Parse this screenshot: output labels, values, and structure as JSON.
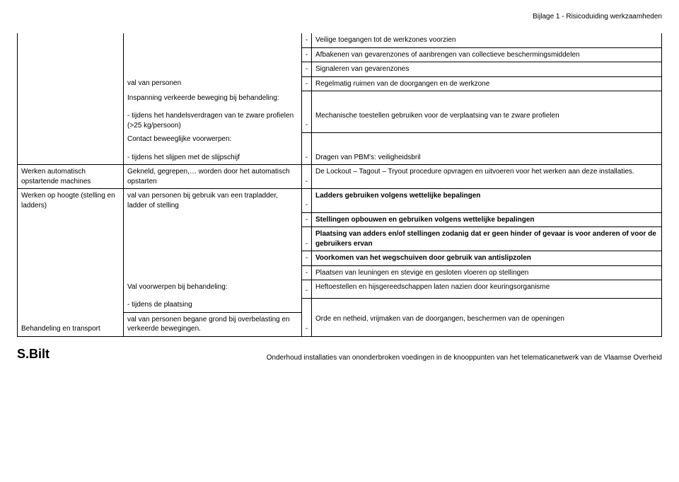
{
  "header_right": "Bijlage 1 - Risicoduiding werkzaamheden",
  "dash": "-",
  "rows": {
    "r1_c4": "Veilige toegangen tot de werkzones voorzien",
    "r2_c4": "Afbakenen van gevarenzones of aanbrengen van collectieve beschermingsmiddelen",
    "r3_c4": "Signaleren van gevarenzones",
    "r4_c2": "val van personen",
    "r4_c4": "Regelmatig ruimen van de doorgangen en de werkzone",
    "r5_c2": "Inspanning verkeerde beweging bij behandeling:",
    "r6_c2": "- tijdens het handelsverdragen van te zware profielen (>25 kg/persoon)",
    "r6_c4": "Mechanische toestellen gebruiken voor de verplaatsing van te zware profielen",
    "r7_c2": "Contact beweeglijke voorwerpen:",
    "r8_c2": "- tijdens het slijpen met de slijpschijf",
    "r8_c4": "Dragen van PBM's: veiligheidsbril",
    "r9_c1": "Werken automatisch opstartende machines",
    "r9_c2": "Gekneld, gegrepen,… worden door het automatisch opstarten",
    "r9_c4": "De Lockout – Tagout – Tryout procedure opvragen en uitvoeren voor het werken aan deze installaties.",
    "r10_c1": "Werken op hoogte (stelling en ladders)",
    "r10_c2": "val van personen bij gebruik van een trapladder, ladder of stelling",
    "r10_c4": "Ladders gebruiken volgens wettelijke bepalingen",
    "r11_c4": "Stellingen opbouwen en gebruiken volgens wettelijke bepalingen",
    "r12_c4": "Plaatsing van adders en/of stellingen zodanig dat er geen hinder of gevaar is voor anderen of voor de gebruikers ervan",
    "r13_c4": "Voorkomen van het wegschuiven door gebruik van antislipzolen",
    "r14_c4": "Plaatsen van leuningen en stevige en gesloten vloeren op stellingen",
    "r15_c2": "Val voorwerpen bij behandeling:",
    "r15_c4": "Heftoestellen en hijsgereedschappen laten nazien door keuringsorganisme",
    "r16_c2": "- tijdens de plaatsing",
    "r17_c1": "Behandeling en transport",
    "r17_c2": "val van personen begane grond bij overbelasting en verkeerde bewegingen.",
    "r17_c4": "Orde en netheid, vrijmaken van de doorgangen, beschermen van de openingen"
  },
  "logo": "S.Bilt",
  "footnote": "Onderhoud installaties van ononderbroken voedingen in de knooppunten van het telematicanetwerk van de Vlaamse Overheid"
}
